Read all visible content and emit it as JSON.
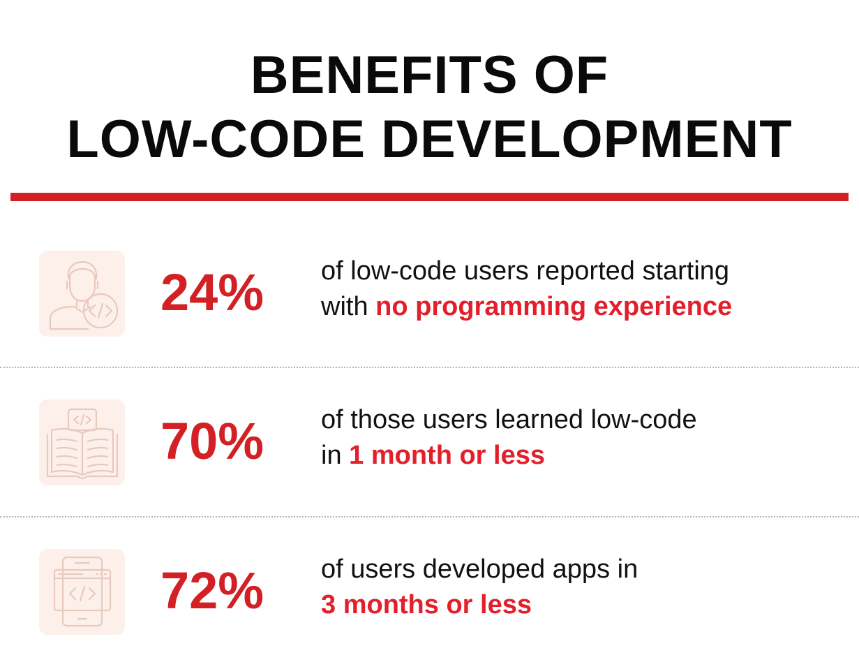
{
  "header": {
    "title_line1": "BENEFITS OF",
    "title_line2": "LOW-CODE DEVELOPMENT"
  },
  "colors": {
    "accent": "#d22025",
    "highlight": "#e21f2a",
    "text": "#111111",
    "icon_tile": "#fdf0ea",
    "icon_stroke": "#e8c9bd"
  },
  "stats": [
    {
      "icon": "developer-avatar-icon",
      "value": "24%",
      "line1": "of low-code users reported starting",
      "line2_prefix": "with ",
      "line2_highlight": "no programming experience"
    },
    {
      "icon": "code-book-icon",
      "value": "70%",
      "line1": "of those users learned low-code",
      "line2_prefix": "in ",
      "line2_highlight": "1 month or less"
    },
    {
      "icon": "mobile-code-icon",
      "value": "72%",
      "line1": "of users developed apps in",
      "line2_prefix": "",
      "line2_highlight": "3 months or less"
    }
  ]
}
